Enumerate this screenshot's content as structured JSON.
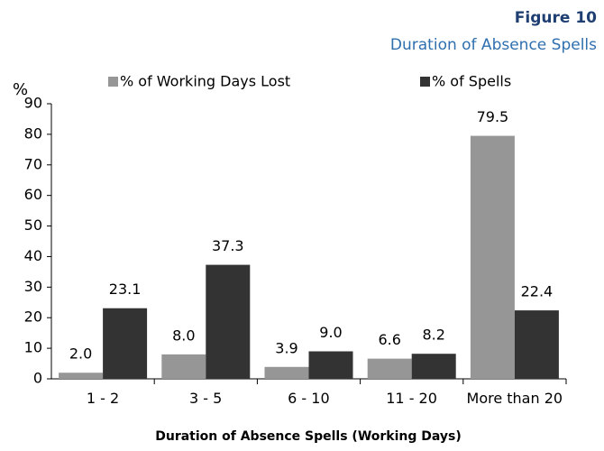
{
  "chart_data": {
    "type": "bar",
    "title": "Figure 10",
    "subtitle": "Duration of Absence Spells",
    "y_label": "%",
    "x_label": "Duration of Absence Spells (Working Days)",
    "categories": [
      "1 - 2",
      "3 - 5",
      "6 - 10",
      "11 - 20",
      "More than 20"
    ],
    "series": [
      {
        "name": "% of Working Days Lost",
        "color": "#969696",
        "values": [
          2,
          8,
          3.9,
          6.6,
          79.5
        ],
        "value_labels": [
          "2.0",
          "8.0",
          "3.9",
          "6.6",
          "79.5"
        ]
      },
      {
        "name": "% of Spells",
        "color": "#333333",
        "values": [
          23.1,
          37.3,
          9,
          8.2,
          22.4
        ],
        "value_labels": [
          "23.1",
          "37.3",
          "9.0",
          "8.2",
          "22.4"
        ]
      }
    ],
    "ylim": [
      0,
      90
    ],
    "yticks": [
      0,
      10,
      20,
      30,
      40,
      50,
      60,
      70,
      80,
      90
    ]
  }
}
